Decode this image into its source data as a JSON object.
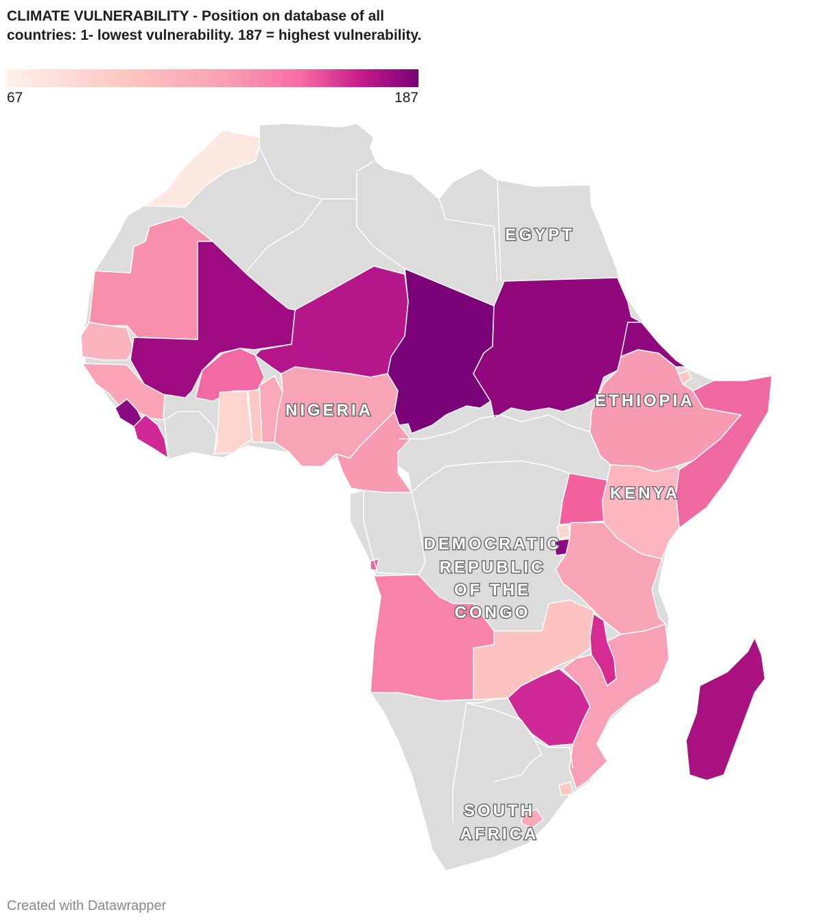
{
  "title": "CLIMATE VULNERABILITY - Position on database of all countries: 1- lowest vulnerability. 187 = highest vulnerability.",
  "legend": {
    "min": "67",
    "max": "187",
    "colors": [
      "#fff0eb",
      "#fcc5c0",
      "#f99bb2",
      "#f768a1",
      "#c51b8a",
      "#7a0177"
    ]
  },
  "no_data_color": "#dcdcdc",
  "map_labels": {
    "egypt": "EGYPT",
    "nigeria": "NIGERIA",
    "ethiopia": "ETHIOPIA",
    "kenya": "KENYA",
    "drc": [
      "DEMOCRATIC",
      "REPUBLIC",
      "OF THE",
      "CONGO"
    ],
    "south_africa": [
      "SOUTH",
      "AFRICA"
    ]
  },
  "footer": "Created with Datawrapper"
}
